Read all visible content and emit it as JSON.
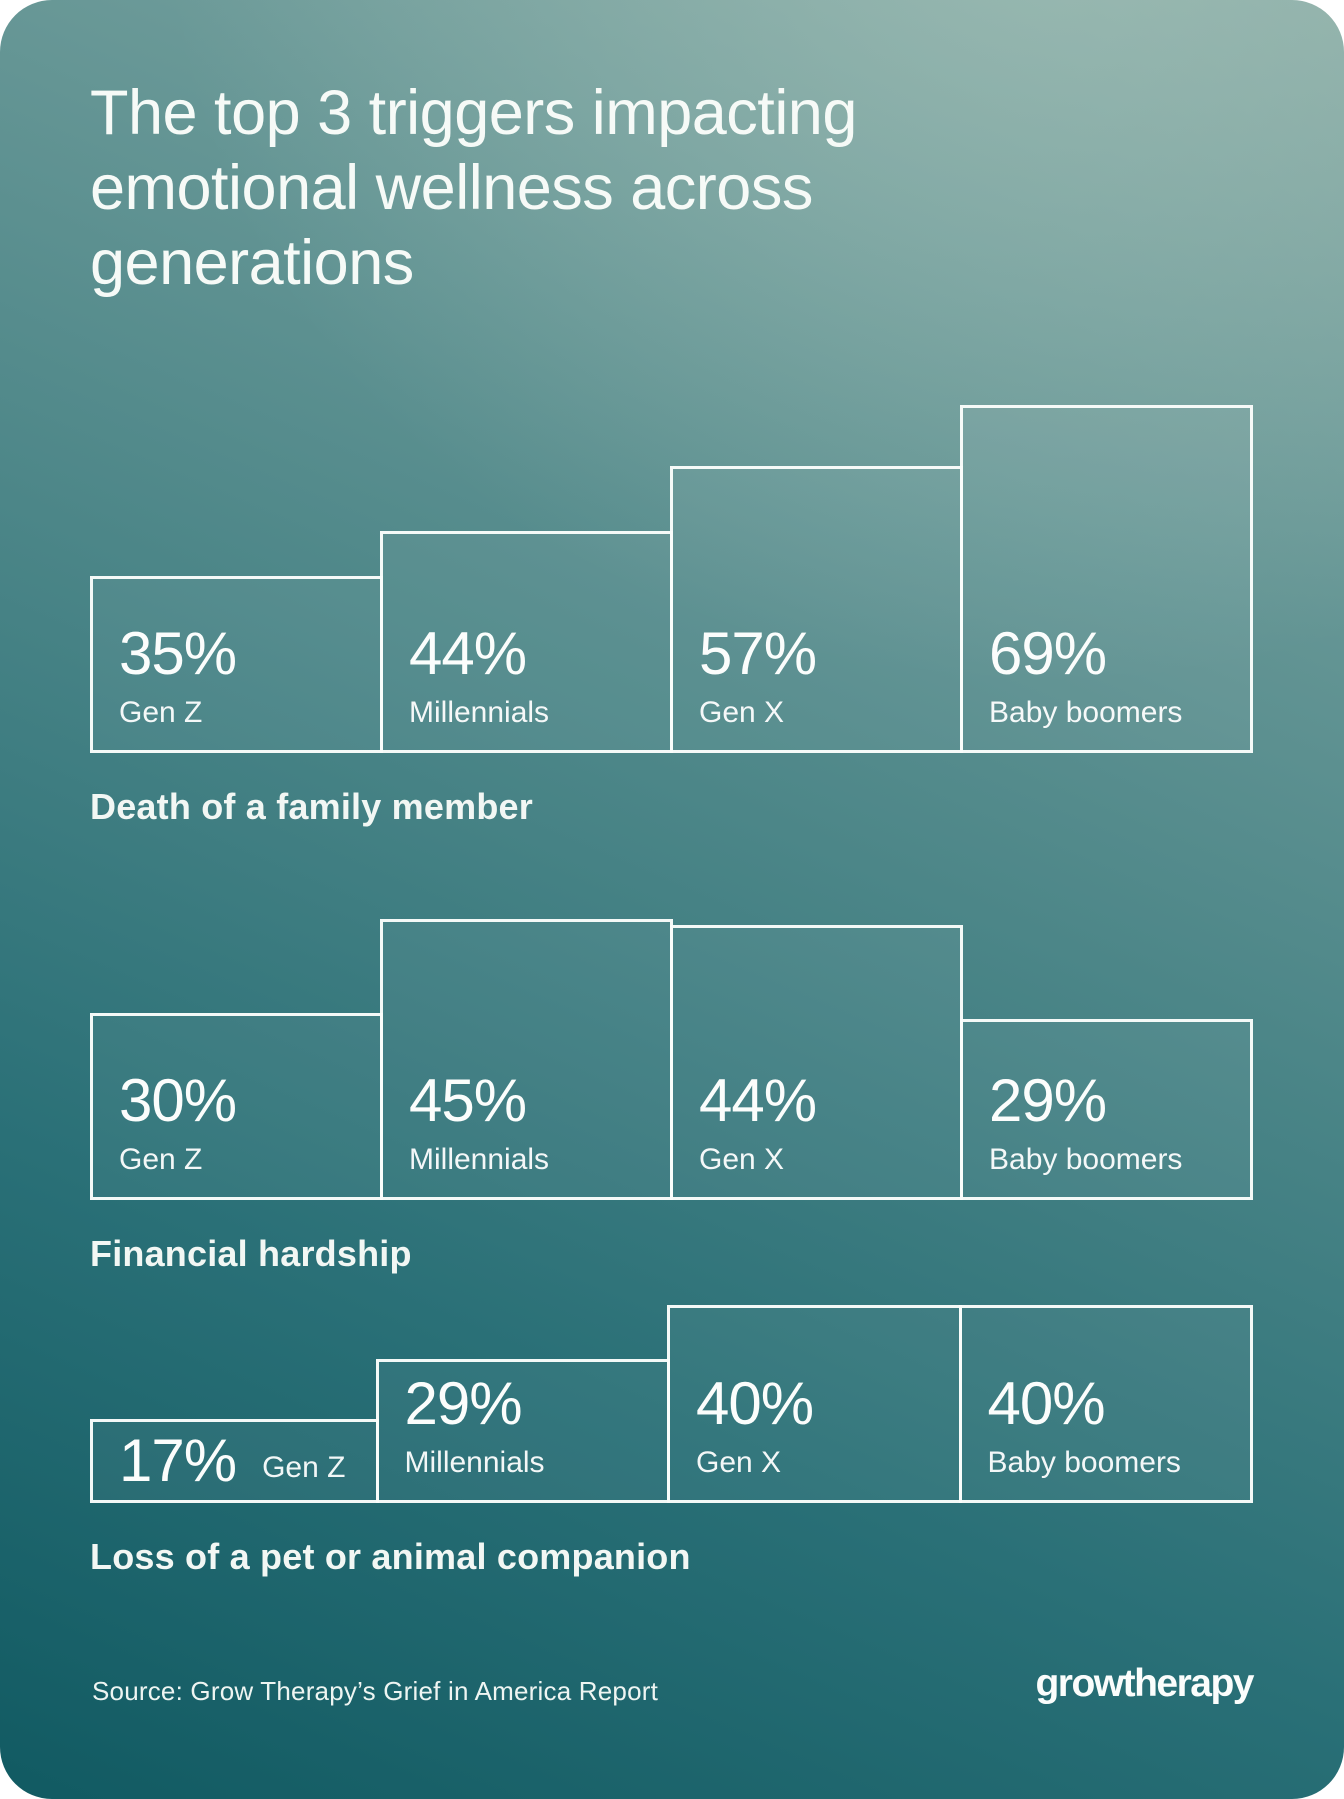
{
  "page": {
    "title": "The top 3 triggers impacting emotional wellness across generations",
    "background_top_color": "#86a9a3",
    "background_bottom_color": "#115a62",
    "text_color": "#f6faf7",
    "bar_border_color": "#fafdfb"
  },
  "chart_data": [
    {
      "type": "bar",
      "title": "Death of a family member",
      "categories": [
        "Gen Z",
        "Millennials",
        "Gen X",
        "Baby boomers"
      ],
      "values": [
        35,
        44,
        57,
        69
      ],
      "value_labels": [
        "35%",
        "44%",
        "57%",
        "69%"
      ],
      "unit": "%",
      "orientation": "vertical",
      "bar_style": "white-outline-transparent-fill",
      "labels_inside_bars": true,
      "ylim": [
        0,
        69
      ]
    },
    {
      "type": "bar",
      "title": "Financial hardship",
      "categories": [
        "Gen Z",
        "Millennials",
        "Gen X",
        "Baby boomers"
      ],
      "values": [
        30,
        45,
        44,
        29
      ],
      "value_labels": [
        "30%",
        "45%",
        "44%",
        "29%"
      ],
      "unit": "%",
      "orientation": "vertical",
      "bar_style": "white-outline-transparent-fill",
      "labels_inside_bars": true,
      "ylim": [
        0,
        45
      ]
    },
    {
      "type": "bar",
      "title": "Loss of a pet or animal companion",
      "categories": [
        "Gen Z",
        "Millennials",
        "Gen X",
        "Baby boomers"
      ],
      "values": [
        17,
        29,
        40,
        40
      ],
      "value_labels": [
        "17%",
        "29%",
        "40%",
        "40%"
      ],
      "unit": "%",
      "orientation": "vertical",
      "bar_style": "white-outline-transparent-fill",
      "labels_inside_bars": true,
      "ylim": [
        0,
        40
      ]
    }
  ],
  "footer": {
    "source": "Source: Grow Therapy’s Grief in America Report",
    "logo_text": "growtherapy"
  }
}
